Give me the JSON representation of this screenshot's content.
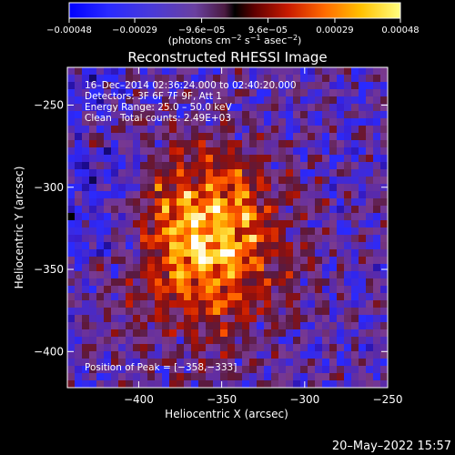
{
  "chart_data": {
    "type": "heatmap",
    "title": "Reconstructed RHESSI Image",
    "xlabel": "Heliocentric X (arcsec)",
    "ylabel": "Heliocentric Y (arcsec)",
    "xlim": [
      -443,
      -250
    ],
    "ylim": [
      -422,
      -227
    ],
    "x_ticks": [
      -400,
      -350,
      -300,
      -250
    ],
    "y_ticks": [
      -250,
      -300,
      -350,
      -400
    ],
    "x_tick_labels": [
      "−400",
      "−350",
      "−300",
      "−250"
    ],
    "y_tick_labels": [
      "−250",
      "−300",
      "−350",
      "−400"
    ],
    "colorbar": {
      "range": [
        -0.00048,
        0.00048
      ],
      "ticks": [
        -0.00048,
        -0.00029,
        -9.6e-05,
        9.6e-05,
        0.00029,
        0.00048
      ],
      "tick_labels": [
        "−0.00048",
        "−0.00029",
        "−9.6e−05",
        "9.6e−05",
        "0.00029",
        "0.00048"
      ],
      "units_main": "(photons cm",
      "units_exp1": "−2",
      "units_mid": " s",
      "units_exp2": "−1",
      "units_mid2": " asec",
      "units_exp3": "−2",
      "units_end": ")"
    },
    "annotations": {
      "time_range": "16–Dec–2014 02:36:24.000 to 02:40:20.000",
      "detectors": "Detectors: 3F 6F 7F 9F, Att 1",
      "energy": "Energy Range: 25.0 – 50.0 keV",
      "clean_label": "Clean",
      "total_counts": "Total counts: 2.49E+03",
      "peak_label": "Position of Peak = [−358,−333]"
    },
    "peak": {
      "x": -358,
      "y": -333
    },
    "grid": false
  },
  "footer_date": "20–May–2022 15:57",
  "colors": {
    "background": "#000000",
    "text": "#ffffff"
  },
  "colormap": [
    "#000000",
    "#1a0a8c",
    "#3a1fd0",
    "#2a2aff",
    "#5a2aa8",
    "#7a3a90",
    "#5a1a40",
    "#8a1010",
    "#c81a00",
    "#ff5a00",
    "#ffb000",
    "#ffe040",
    "#ffffff"
  ]
}
